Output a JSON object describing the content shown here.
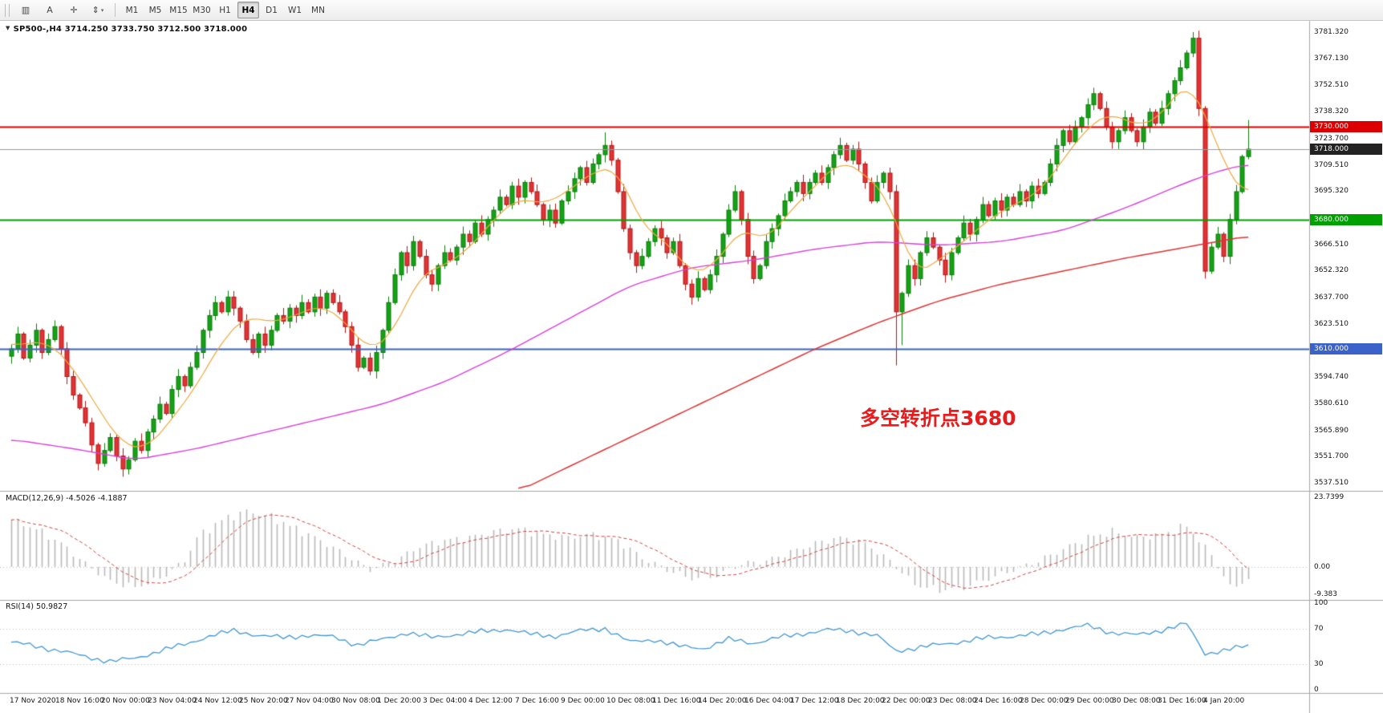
{
  "toolbar": {
    "tool_buttons": [
      {
        "name": "charts-grid-icon",
        "glyph": "▥"
      },
      {
        "name": "text-annotation-tool",
        "glyph": "A"
      },
      {
        "name": "crosshair-tool",
        "glyph": "✛"
      },
      {
        "name": "objects-dropdown",
        "glyph": "⇕",
        "caret": "▾"
      }
    ],
    "timeframes": [
      "M1",
      "M5",
      "M15",
      "M30",
      "H1",
      "H4",
      "D1",
      "W1",
      "MN"
    ],
    "active_timeframe": "H4"
  },
  "main_panel": {
    "symbol_line": "SP500-,H4  3714.250 3733.750 3712.500 3718.000",
    "annotation": "多空转折点3680"
  },
  "macd_panel": {
    "label": "MACD(12,26,9) -4.5026 -4.1887",
    "axis_labels": [
      {
        "value": 23.7399,
        "text": "23.7399"
      },
      {
        "value": 0,
        "text": "0.00"
      },
      {
        "value": -9.383,
        "text": "-9.383"
      }
    ]
  },
  "rsi_panel": {
    "label": "RSI(14) 50.9827",
    "axis_labels": [
      {
        "value": 100,
        "text": "100"
      },
      {
        "value": 70,
        "text": "70"
      },
      {
        "value": 30,
        "text": "30"
      },
      {
        "value": 0,
        "text": "0"
      }
    ],
    "levels": [
      70,
      30
    ]
  },
  "price_axis": {
    "labels": [
      {
        "value": 3781.32,
        "text": "3781.320"
      },
      {
        "value": 3767.13,
        "text": "3767.130"
      },
      {
        "value": 3752.51,
        "text": "3752.510"
      },
      {
        "value": 3738.32,
        "text": "3738.320"
      },
      {
        "value": 3723.7,
        "text": "3723.700"
      },
      {
        "value": 3709.51,
        "text": "3709.510"
      },
      {
        "value": 3695.32,
        "text": "3695.320"
      },
      {
        "value": 3666.51,
        "text": "3666.510"
      },
      {
        "value": 3652.32,
        "text": "3652.320"
      },
      {
        "value": 3637.7,
        "text": "3637.700"
      },
      {
        "value": 3623.51,
        "text": "3623.510"
      },
      {
        "value": 3594.74,
        "text": "3594.740"
      },
      {
        "value": 3580.61,
        "text": "3580.610"
      },
      {
        "value": 3565.89,
        "text": "3565.890"
      },
      {
        "value": 3551.7,
        "text": "3551.700"
      },
      {
        "value": 3537.51,
        "text": "3537.510"
      }
    ]
  },
  "time_axis": {
    "labels": [
      "17 Nov 2020",
      "18 Nov 16:00",
      "20 Nov 00:00",
      "23 Nov 04:00",
      "24 Nov 12:00",
      "25 Nov 20:00",
      "27 Nov 04:00",
      "30 Nov 08:00",
      "1 Dec 20:00",
      "3 Dec 04:00",
      "4 Dec 12:00",
      "7 Dec 16:00",
      "9 Dec 00:00",
      "10 Dec 08:00",
      "11 Dec 16:00",
      "14 Dec 20:00",
      "16 Dec 04:00",
      "17 Dec 12:00",
      "18 Dec 20:00",
      "22 Dec 00:00",
      "23 Dec 08:00",
      "24 Dec 16:00",
      "28 Dec 00:00",
      "29 Dec 00:00",
      "30 Dec 08:00",
      "31 Dec 16:00",
      "4 Jan 20:00"
    ]
  },
  "chart_data": {
    "type": "candlestick",
    "symbol": "SP500-",
    "timeframe": "H4",
    "title": "SP500-,H4",
    "current_bar": {
      "open": 3714.25,
      "high": 3733.75,
      "low": 3712.5,
      "close": 3718.0
    },
    "price_range": [
      3537.51,
      3781.32
    ],
    "layout": {
      "grid": false,
      "background": "#ffffff",
      "legend": "none"
    },
    "candles": {
      "first_open": 3606,
      "closes": [
        3610,
        3618,
        3605,
        3612,
        3620,
        3608,
        3615,
        3622,
        3610,
        3595,
        3585,
        3578,
        3570,
        3558,
        3548,
        3555,
        3562,
        3552,
        3545,
        3550,
        3560,
        3555,
        3565,
        3572,
        3580,
        3575,
        3588,
        3595,
        3590,
        3600,
        3608,
        3620,
        3628,
        3635,
        3630,
        3638,
        3632,
        3625,
        3615,
        3608,
        3618,
        3612,
        3620,
        3628,
        3625,
        3632,
        3628,
        3635,
        3630,
        3638,
        3632,
        3640,
        3635,
        3630,
        3622,
        3612,
        3600,
        3605,
        3598,
        3608,
        3620,
        3635,
        3650,
        3662,
        3655,
        3668,
        3660,
        3650,
        3645,
        3655,
        3662,
        3658,
        3665,
        3672,
        3668,
        3678,
        3672,
        3680,
        3685,
        3692,
        3688,
        3698,
        3692,
        3700,
        3695,
        3688,
        3680,
        3685,
        3678,
        3690,
        3695,
        3702,
        3708,
        3700,
        3710,
        3715,
        3720,
        3712,
        3695,
        3675,
        3662,
        3655,
        3660,
        3668,
        3675,
        3670,
        3662,
        3668,
        3655,
        3645,
        3638,
        3648,
        3642,
        3650,
        3660,
        3672,
        3685,
        3695,
        3680,
        3660,
        3648,
        3655,
        3668,
        3675,
        3682,
        3690,
        3695,
        3700,
        3694,
        3700,
        3705,
        3700,
        3708,
        3715,
        3720,
        3712,
        3718,
        3710,
        3700,
        3690,
        3700,
        3705,
        3695,
        3630,
        3640,
        3655,
        3648,
        3662,
        3670,
        3665,
        3658,
        3650,
        3662,
        3670,
        3678,
        3672,
        3680,
        3688,
        3682,
        3690,
        3685,
        3692,
        3688,
        3695,
        3690,
        3698,
        3694,
        3700,
        3710,
        3720,
        3728,
        3722,
        3730,
        3735,
        3742,
        3748,
        3740,
        3730,
        3722,
        3728,
        3735,
        3728,
        3722,
        3730,
        3738,
        3732,
        3740,
        3748,
        3755,
        3762,
        3770,
        3778,
        3740,
        3652,
        3665,
        3672,
        3660,
        3680,
        3695,
        3714,
        3718
      ],
      "overrides": {
        "96": {
          "high": 3727
        },
        "143": {
          "low": 3601
        },
        "144": {
          "low": 3612
        },
        "191": {
          "high": 3781.3
        },
        "193": {
          "low": 3648
        },
        "200": {
          "high": 3733.75,
          "low": 3712.5
        }
      }
    },
    "overlays": {
      "ma_fast_waypoints": [
        [
          0,
          3612
        ],
        [
          6,
          3614
        ],
        [
          10,
          3600
        ],
        [
          14,
          3578
        ],
        [
          18,
          3558
        ],
        [
          22,
          3556
        ],
        [
          26,
          3572
        ],
        [
          30,
          3590
        ],
        [
          34,
          3614
        ],
        [
          38,
          3628
        ],
        [
          42,
          3624
        ],
        [
          46,
          3628
        ],
        [
          50,
          3634
        ],
        [
          54,
          3625
        ],
        [
          58,
          3608
        ],
        [
          62,
          3620
        ],
        [
          66,
          3650
        ],
        [
          70,
          3655
        ],
        [
          74,
          3664
        ],
        [
          78,
          3680
        ],
        [
          82,
          3692
        ],
        [
          86,
          3688
        ],
        [
          90,
          3695
        ],
        [
          94,
          3706
        ],
        [
          98,
          3708
        ],
        [
          102,
          3676
        ],
        [
          106,
          3668
        ],
        [
          110,
          3650
        ],
        [
          114,
          3656
        ],
        [
          118,
          3676
        ],
        [
          122,
          3668
        ],
        [
          126,
          3685
        ],
        [
          130,
          3698
        ],
        [
          134,
          3712
        ],
        [
          138,
          3705
        ],
        [
          142,
          3690
        ],
        [
          146,
          3650
        ],
        [
          150,
          3658
        ],
        [
          154,
          3668
        ],
        [
          158,
          3680
        ],
        [
          162,
          3688
        ],
        [
          166,
          3694
        ],
        [
          170,
          3712
        ],
        [
          174,
          3730
        ],
        [
          178,
          3738
        ],
        [
          182,
          3730
        ],
        [
          186,
          3736
        ],
        [
          190,
          3756
        ],
        [
          194,
          3730
        ],
        [
          197,
          3702
        ],
        [
          200,
          3693
        ]
      ],
      "ma_mid_waypoints": [
        [
          0,
          3561
        ],
        [
          10,
          3556
        ],
        [
          20,
          3550
        ],
        [
          30,
          3556
        ],
        [
          40,
          3564
        ],
        [
          50,
          3572
        ],
        [
          60,
          3580
        ],
        [
          70,
          3592
        ],
        [
          80,
          3608
        ],
        [
          90,
          3626
        ],
        [
          100,
          3644
        ],
        [
          110,
          3654
        ],
        [
          120,
          3658
        ],
        [
          130,
          3664
        ],
        [
          140,
          3668
        ],
        [
          150,
          3666
        ],
        [
          160,
          3668
        ],
        [
          170,
          3674
        ],
        [
          180,
          3686
        ],
        [
          190,
          3700
        ],
        [
          195,
          3706
        ],
        [
          200,
          3710
        ]
      ],
      "ma_slow_waypoints": [
        [
          82,
          3533
        ],
        [
          90,
          3546
        ],
        [
          100,
          3562
        ],
        [
          110,
          3578
        ],
        [
          120,
          3594
        ],
        [
          130,
          3610
        ],
        [
          140,
          3624
        ],
        [
          150,
          3636
        ],
        [
          160,
          3645
        ],
        [
          170,
          3652
        ],
        [
          180,
          3659
        ],
        [
          190,
          3665
        ],
        [
          200,
          3671
        ]
      ]
    },
    "indicators": {
      "macd": {
        "params": "12,26,9",
        "value": -4.5026,
        "signal": -4.1887,
        "range": [
          -9.383,
          23.7399
        ],
        "waypoints": [
          [
            0,
            16
          ],
          [
            4,
            13
          ],
          [
            8,
            8
          ],
          [
            12,
            1
          ],
          [
            16,
            -5
          ],
          [
            20,
            -7
          ],
          [
            24,
            -4
          ],
          [
            28,
            2
          ],
          [
            30,
            10
          ],
          [
            34,
            16
          ],
          [
            38,
            19
          ],
          [
            42,
            17
          ],
          [
            46,
            13
          ],
          [
            50,
            9
          ],
          [
            54,
            4
          ],
          [
            58,
            -1
          ],
          [
            62,
            2
          ],
          [
            66,
            7
          ],
          [
            70,
            9
          ],
          [
            74,
            10
          ],
          [
            78,
            12
          ],
          [
            82,
            13
          ],
          [
            86,
            11
          ],
          [
            90,
            10
          ],
          [
            94,
            11
          ],
          [
            98,
            9
          ],
          [
            102,
            3
          ],
          [
            106,
            -1
          ],
          [
            110,
            -4
          ],
          [
            114,
            -3
          ],
          [
            118,
            1
          ],
          [
            122,
            2
          ],
          [
            126,
            5
          ],
          [
            130,
            8
          ],
          [
            134,
            10
          ],
          [
            138,
            8
          ],
          [
            142,
            2
          ],
          [
            146,
            -6
          ],
          [
            150,
            -8
          ],
          [
            154,
            -7
          ],
          [
            158,
            -4
          ],
          [
            162,
            -1
          ],
          [
            166,
            2
          ],
          [
            170,
            6
          ],
          [
            174,
            10
          ],
          [
            178,
            12
          ],
          [
            182,
            10
          ],
          [
            186,
            11
          ],
          [
            190,
            14
          ],
          [
            194,
            4
          ],
          [
            197,
            -7
          ],
          [
            200,
            -4.5
          ]
        ]
      },
      "rsi": {
        "params": "14",
        "value": 50.9827,
        "range": [
          0,
          100
        ],
        "waypoints": [
          [
            0,
            55
          ],
          [
            4,
            50
          ],
          [
            8,
            45
          ],
          [
            12,
            38
          ],
          [
            16,
            33
          ],
          [
            20,
            36
          ],
          [
            24,
            45
          ],
          [
            28,
            52
          ],
          [
            32,
            62
          ],
          [
            36,
            68
          ],
          [
            40,
            63
          ],
          [
            44,
            60
          ],
          [
            48,
            63
          ],
          [
            52,
            61
          ],
          [
            56,
            52
          ],
          [
            60,
            58
          ],
          [
            64,
            66
          ],
          [
            68,
            60
          ],
          [
            72,
            64
          ],
          [
            76,
            67
          ],
          [
            80,
            70
          ],
          [
            84,
            64
          ],
          [
            88,
            62
          ],
          [
            92,
            68
          ],
          [
            96,
            71
          ],
          [
            100,
            55
          ],
          [
            104,
            58
          ],
          [
            108,
            50
          ],
          [
            112,
            48
          ],
          [
            116,
            58
          ],
          [
            120,
            54
          ],
          [
            124,
            60
          ],
          [
            128,
            65
          ],
          [
            132,
            69
          ],
          [
            136,
            68
          ],
          [
            140,
            62
          ],
          [
            143,
            45
          ],
          [
            146,
            48
          ],
          [
            150,
            52
          ],
          [
            154,
            56
          ],
          [
            158,
            60
          ],
          [
            162,
            62
          ],
          [
            166,
            64
          ],
          [
            170,
            70
          ],
          [
            174,
            74
          ],
          [
            178,
            66
          ],
          [
            182,
            63
          ],
          [
            186,
            69
          ],
          [
            190,
            76
          ],
          [
            193,
            42
          ],
          [
            196,
            45
          ],
          [
            200,
            51
          ]
        ]
      }
    },
    "hlines": [
      {
        "name": "resistance-line-3730",
        "price": 3730.0,
        "label": "3730.000",
        "line_color": "#dd0000",
        "line_width": 2,
        "badge_bg": "#dd0000",
        "badge_fg": "#ffffff"
      },
      {
        "name": "pivot-line-3680",
        "price": 3680.0,
        "label": "3680.000",
        "line_color": "#00a000",
        "line_width": 2,
        "badge_bg": "#00a000",
        "badge_fg": "#ffffff"
      },
      {
        "name": "support-line-3610",
        "price": 3610.0,
        "label": "3610.000",
        "line_color": "#3a62c8",
        "line_width": 2,
        "badge_bg": "#3a62c8",
        "badge_fg": "#ffffff"
      },
      {
        "name": "current-price-line",
        "price": 3718.0,
        "label": "3718.000",
        "line_color": "#9a9a9a",
        "line_width": 1,
        "badge_bg": "#222222",
        "badge_fg": "#ffffff"
      }
    ],
    "colors": {
      "up_fill": "#15a315",
      "up_edge": "#0b7a0b",
      "down_fill": "#e23434",
      "down_edge": "#b01515",
      "ma_fast": "#eda83e",
      "ma_mid": "#d93fd9",
      "ma_slow": "#dd3333",
      "macd_hist": "#b9b9b9",
      "macd_signal": "#d23f3f",
      "rsi_line": "#3f96d2",
      "levels_dotted": "#bdbdbd",
      "separator": "#a6a6a6"
    }
  }
}
